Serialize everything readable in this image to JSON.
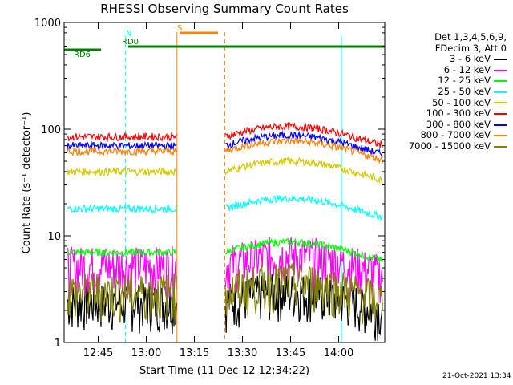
{
  "chart_data": {
    "type": "line",
    "title": "RHESSI Observing Summary Count Rates",
    "xlabel": "Start Time (11-Dec-12 12:34:22)",
    "ylabel": "Count Rate (s⁻¹ detector⁻¹)",
    "y_scale": "log",
    "ylim": [
      1,
      1000
    ],
    "xlim_minutes": [
      0,
      100
    ],
    "x_ticks": [
      {
        "t": 10.63,
        "label": "12:45"
      },
      {
        "t": 25.63,
        "label": "13:00"
      },
      {
        "t": 40.63,
        "label": "13:15"
      },
      {
        "t": 55.63,
        "label": "13:30"
      },
      {
        "t": 70.63,
        "label": "13:45"
      },
      {
        "t": 85.63,
        "label": "14:00"
      }
    ],
    "y_ticks": [
      {
        "v": 1,
        "label": "1"
      },
      {
        "v": 10,
        "label": "10"
      },
      {
        "v": 100,
        "label": "100"
      },
      {
        "v": 1000,
        "label": "1000"
      }
    ],
    "grid": false,
    "legend_position": "right",
    "legend_header": [
      "Det 1,3,4,5,6,9,",
      "FDecim 3, Att 0"
    ],
    "series": [
      {
        "name": "3 - 6 keV",
        "color": "#000000",
        "level": 2.4
      },
      {
        "name": "6 - 12 keV",
        "color": "#ff00ff",
        "level": 5.3
      },
      {
        "name": "12 - 25 keV",
        "color": "#00ff00",
        "level": 7.0
      },
      {
        "name": "25 - 50 keV",
        "color": "#00ffff",
        "level": 18
      },
      {
        "name": "50 - 100 keV",
        "color": "#d4c800",
        "level": 40
      },
      {
        "name": "100 - 300 keV",
        "color": "#ff0000",
        "level": 85
      },
      {
        "name": "300 - 800 keV",
        "color": "#0000ff",
        "level": 70
      },
      {
        "name": "800 - 7000 keV",
        "color": "#ff8000",
        "level": 62
      },
      {
        "name": "7000 - 15000 keV",
        "color": "#808000",
        "level": 3.0
      }
    ],
    "flags": [
      {
        "label": "N",
        "color": "#00ffff",
        "start": 20.0,
        "end": 20.0
      },
      {
        "label": "S",
        "color": "#ff8000",
        "start": 36.0,
        "end": 48.0
      },
      {
        "label": "RD0",
        "color": "#008000",
        "start": 20.0,
        "end": 100
      },
      {
        "label": "RD6",
        "color": "#008000",
        "start": 0,
        "end": 11.5
      }
    ],
    "eclipse_markers": [
      0,
      19.1,
      86.5,
      100
    ],
    "saa_markers": [
      35.2,
      50.1
    ]
  },
  "footer": {
    "timestamp": "21-Oct-2021 13:34"
  }
}
